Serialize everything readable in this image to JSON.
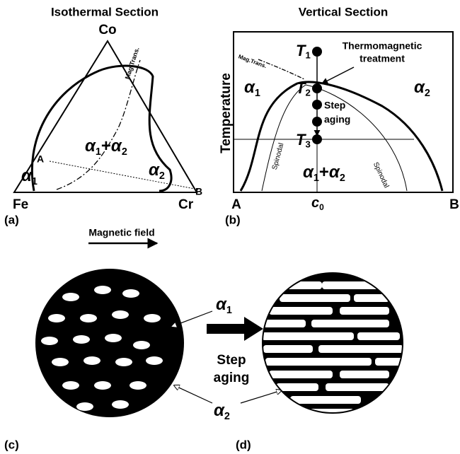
{
  "panel_a": {
    "title": "Isothermal Section",
    "label": "(a)",
    "top": "Co",
    "left": "Fe",
    "right": "Cr",
    "point_a": "A",
    "point_b": "B",
    "mag_trans": "Mag.Trans.",
    "phase_1": [
      "α",
      "1"
    ],
    "phase_mix": [
      "α",
      "1",
      "+",
      "α",
      "2"
    ],
    "phase_2": [
      "α",
      "2"
    ]
  },
  "panel_b": {
    "title": "Vertical Section",
    "label": "(b)",
    "y_axis": "Temperature",
    "left": "A",
    "right": "B",
    "composition": [
      "c",
      "0"
    ],
    "mag_trans": "Mag.Trans.",
    "t1": [
      "T",
      "1"
    ],
    "t2": [
      "T",
      "2"
    ],
    "t3": [
      "T",
      "3"
    ],
    "treatment": [
      "Thermomagnetic",
      "treatment"
    ],
    "aging": [
      "Step",
      "aging"
    ],
    "phase_1": [
      "α",
      "1"
    ],
    "phase_2": [
      "α",
      "2"
    ],
    "phase_mix": [
      "α",
      "1",
      "+",
      "α",
      "2"
    ],
    "spinodal_left": "Spinodal",
    "spinodal_right": "Spinodal"
  },
  "panel_c": {
    "label": "(c)",
    "field": "Magnetic field",
    "phase_1": [
      "α",
      "1"
    ],
    "phase_2": [
      "α",
      "2"
    ],
    "aging": [
      "Step",
      "aging"
    ]
  },
  "panel_d": {
    "label": "(d)"
  }
}
